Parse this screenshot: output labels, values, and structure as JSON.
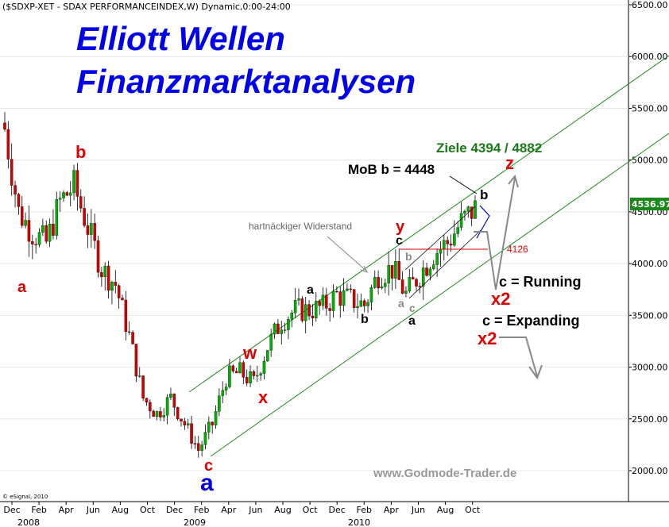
{
  "header": {
    "text": "($SDXP-XET - SDAX PERFORMANCEINDEX,W) Dynamic,0:00-24:00"
  },
  "title": {
    "line1": "Elliott Wellen",
    "line2": "Finanzmarktanalysen"
  },
  "watermark": "www.Godmode-Trader.de",
  "copyright": "© eSignal, 2010",
  "colors": {
    "up": "#00b000",
    "down": "#d00000",
    "channel": "#1a8a1a",
    "resistance": "#e00000",
    "price_badge": "#1a8a1a"
  },
  "chart_data": {
    "type": "candlestick",
    "x": [
      "Dec 2007",
      "Jan 2008",
      "Feb 2008",
      "Mar 2008",
      "Apr 2008",
      "May 2008",
      "Jun 2008",
      "Jul 2008",
      "Aug 2008",
      "Sep 2008",
      "Oct 2008",
      "Nov 2008",
      "Dec 2008",
      "Jan 2009",
      "Feb 2009",
      "Mar 2009",
      "Apr 2009",
      "May 2009",
      "Jun 2009",
      "Jul 2009",
      "Aug 2009",
      "Sep 2009",
      "Oct 2009",
      "Nov 2009",
      "Dec 2009",
      "Jan 2010",
      "Feb 2010",
      "Mar 2010",
      "Apr 2010",
      "May 2010",
      "Jun 2010",
      "Jul 2010",
      "Aug 2010",
      "Sep 2010",
      "Oct 2010"
    ],
    "close": [
      5300,
      4500,
      4300,
      4200,
      4600,
      4750,
      4350,
      3950,
      3800,
      3300,
      2700,
      2550,
      2700,
      2450,
      2200,
      2450,
      2900,
      2950,
      2850,
      3200,
      3450,
      3550,
      3550,
      3580,
      3700,
      3650,
      3600,
      3900,
      3950,
      3700,
      3900,
      4100,
      4200,
      4400,
      4537
    ],
    "y_ticks": [
      "6500.00",
      "6000.00",
      "5500.00",
      "5000.00",
      "4500.00",
      "4000.00",
      "3500.00",
      "3000.00",
      "2500.00",
      "2000.00"
    ],
    "ylim": [
      1750,
      6650
    ],
    "x_month_labels": [
      "Dec",
      "Feb",
      "Apr",
      "Jun",
      "Aug",
      "Oct",
      "Dec",
      "Feb",
      "Apr",
      "Jun",
      "Aug",
      "Oct",
      "Dec",
      "Feb",
      "Apr",
      "Jun",
      "Aug",
      "Oct"
    ],
    "x_year_labels": [
      "2008",
      "2009",
      "2010"
    ],
    "last_price": "4536.97",
    "resistance_value": "4126",
    "annotations": {
      "b_top": "b",
      "a_left": "a",
      "c_low": "c",
      "a_big": "a",
      "w": "w",
      "x": "x",
      "a_mid": "a",
      "b_mid": "b",
      "y": "y",
      "c_red": "c",
      "b_gray": "b",
      "a_gray": "a",
      "c_gray": "c",
      "a_bottom": "a",
      "b_right": "b",
      "z": "z",
      "mob": "MoB b = 4448",
      "ziele": "Ziele 4394 / 4882",
      "widerstand": "hartnäckiger Widerstand",
      "running": "c = Running",
      "x2a": "x2",
      "expanding": "c = Expanding",
      "x2b": "x2"
    }
  }
}
